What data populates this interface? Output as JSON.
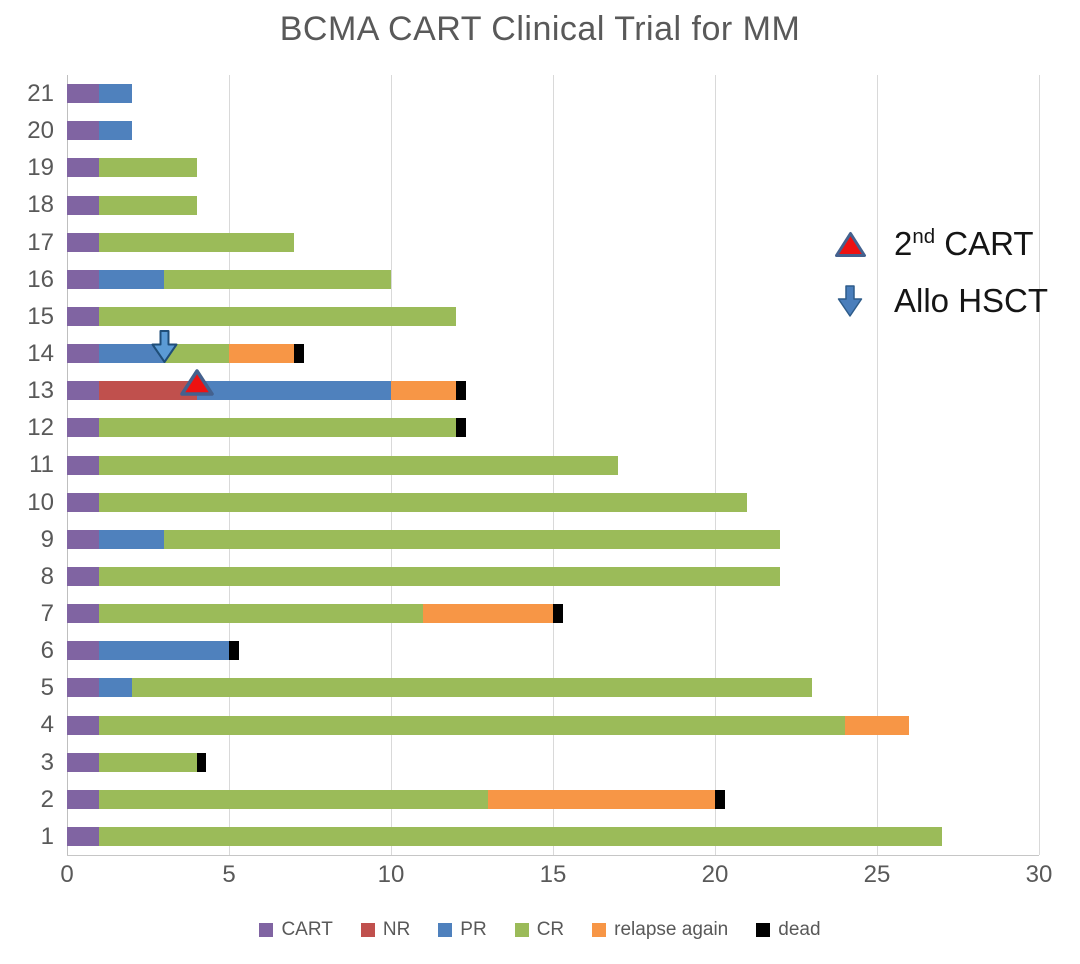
{
  "chart_data": {
    "type": "bar",
    "orientation": "horizontal-stacked",
    "title": "BCMA CART Clinical Trial for MM",
    "x_axis": {
      "min": 0,
      "max": 30,
      "step": 5,
      "ticks": [
        "0",
        "5",
        "10",
        "15",
        "20",
        "25",
        "30"
      ]
    },
    "y_axis": {
      "unit": "patient number",
      "order_top_to_bottom": [
        "21",
        "20",
        "19",
        "18",
        "17",
        "16",
        "15",
        "14",
        "13",
        "12",
        "11",
        "10",
        "9",
        "8",
        "7",
        "6",
        "5",
        "4",
        "3",
        "2",
        "1"
      ]
    },
    "grid": "vertical-only",
    "legend_position": "bottom",
    "series": [
      {
        "name": "CART",
        "color": "#8064A2"
      },
      {
        "name": "NR",
        "color": "#C0504D"
      },
      {
        "name": "PR",
        "color": "#4F81BD"
      },
      {
        "name": "CR",
        "color": "#9BBB59"
      },
      {
        "name": "relapse again",
        "color": "#F79646"
      },
      {
        "name": "dead",
        "color": "#000000"
      }
    ],
    "rows": [
      {
        "patient": "21",
        "values": [
          1,
          0,
          1,
          0,
          0,
          0
        ]
      },
      {
        "patient": "20",
        "values": [
          1,
          0,
          1,
          0,
          0,
          0
        ]
      },
      {
        "patient": "19",
        "values": [
          1,
          0,
          0,
          3,
          0,
          0
        ]
      },
      {
        "patient": "18",
        "values": [
          1,
          0,
          0,
          3,
          0,
          0
        ]
      },
      {
        "patient": "17",
        "values": [
          1,
          0,
          0,
          6,
          0,
          0
        ]
      },
      {
        "patient": "16",
        "values": [
          1,
          0,
          2,
          7,
          0,
          0
        ]
      },
      {
        "patient": "15",
        "values": [
          1,
          0,
          0,
          11,
          0,
          0
        ]
      },
      {
        "patient": "14",
        "values": [
          1,
          0,
          2,
          2,
          2,
          0.3
        ]
      },
      {
        "patient": "13",
        "values": [
          1,
          3,
          6,
          0,
          2,
          0.3
        ]
      },
      {
        "patient": "12",
        "values": [
          1,
          0,
          0,
          11,
          0,
          0.3
        ]
      },
      {
        "patient": "11",
        "values": [
          1,
          0,
          0,
          16,
          0,
          0
        ]
      },
      {
        "patient": "10",
        "values": [
          1,
          0,
          0,
          20,
          0,
          0
        ]
      },
      {
        "patient": "9",
        "values": [
          1,
          0,
          2,
          19,
          0,
          0
        ]
      },
      {
        "patient": "8",
        "values": [
          1,
          0,
          0,
          21,
          0,
          0
        ]
      },
      {
        "patient": "7",
        "values": [
          1,
          0,
          0,
          10,
          4,
          0.3
        ]
      },
      {
        "patient": "6",
        "values": [
          1,
          0,
          4,
          0,
          0,
          0.3
        ]
      },
      {
        "patient": "5",
        "values": [
          1,
          0,
          1,
          21,
          0,
          0
        ]
      },
      {
        "patient": "4",
        "values": [
          1,
          0,
          0,
          23,
          2,
          0
        ]
      },
      {
        "patient": "3",
        "values": [
          1,
          0,
          0,
          3,
          0,
          0.3
        ]
      },
      {
        "patient": "2",
        "values": [
          1,
          0,
          0,
          12,
          7,
          0.3
        ]
      },
      {
        "patient": "1",
        "values": [
          1,
          0,
          0,
          26,
          0,
          0
        ]
      }
    ],
    "markers": [
      {
        "type": "allo-hsct",
        "symbol": "down-arrow",
        "patient": "14",
        "x": 3
      },
      {
        "type": "second-cart",
        "symbol": "triangle",
        "patient": "13",
        "x": 4
      }
    ],
    "annotations": {
      "second_cart": {
        "base": "2",
        "sup": "nd",
        "rest": " CART"
      },
      "allo_hsct": {
        "label": "Allo HSCT"
      }
    }
  },
  "colors": {
    "title_text": "#595959",
    "axis_text": "#595959",
    "gridline": "#D9D9D9",
    "axis_line": "#BFBFBF",
    "triangle_fill": "#EE1111",
    "triangle_stroke": "#44618E",
    "arrow_fill": "#5B9BD5",
    "arrow_stroke": "#1F4E79",
    "legend_arrow_fill": "#4A7EBB",
    "legend_arrow_stroke": "#2E5C8A"
  }
}
